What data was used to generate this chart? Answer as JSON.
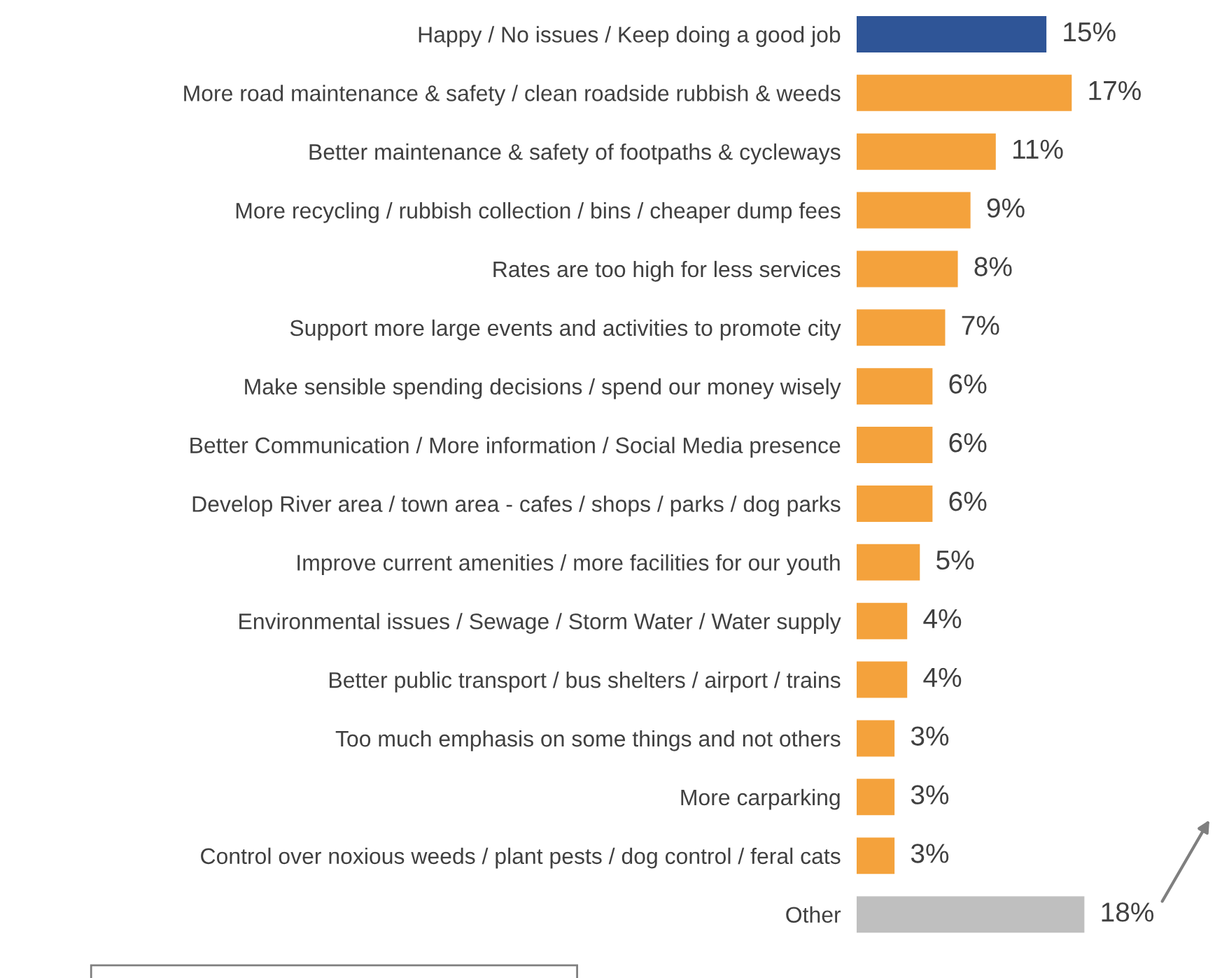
{
  "chart_data": {
    "type": "bar",
    "orientation": "horizontal",
    "categories": [
      "Happy / No issues / Keep doing a good job",
      "More road maintenance & safety / clean roadside rubbish & weeds",
      "Better maintenance & safety of footpaths & cycleways",
      "More recycling / rubbish collection / bins / cheaper dump fees",
      "Rates are too high for less services",
      "Support more large events and activities to promote city",
      "Make sensible spending decisions / spend our money wisely",
      "Better Communication / More information / Social Media presence",
      "Develop River area / town area - cafes / shops / parks / dog parks",
      "Improve current amenities / more facilities for our youth",
      "Environmental issues / Sewage / Storm Water / Water supply",
      "Better public transport / bus shelters / airport / trains",
      "Too much emphasis on some things and not others",
      "More carparking",
      "Control over noxious weeds / plant pests / dog control / feral cats",
      "Other"
    ],
    "values": [
      15,
      17,
      11,
      9,
      8,
      7,
      6,
      6,
      6,
      5,
      4,
      4,
      3,
      3,
      3,
      18
    ],
    "value_labels": [
      "15%",
      "17%",
      "11%",
      "9%",
      "8%",
      "7%",
      "6%",
      "6%",
      "6%",
      "5%",
      "4%",
      "4%",
      "3%",
      "3%",
      "3%",
      "18%"
    ],
    "colors": [
      "#2f5597",
      "#f4a23c",
      "#f4a23c",
      "#f4a23c",
      "#f4a23c",
      "#f4a23c",
      "#f4a23c",
      "#f4a23c",
      "#f4a23c",
      "#f4a23c",
      "#f4a23c",
      "#f4a23c",
      "#f4a23c",
      "#f4a23c",
      "#f4a23c",
      "#bfbfbf"
    ],
    "grid": false,
    "legend": false
  }
}
